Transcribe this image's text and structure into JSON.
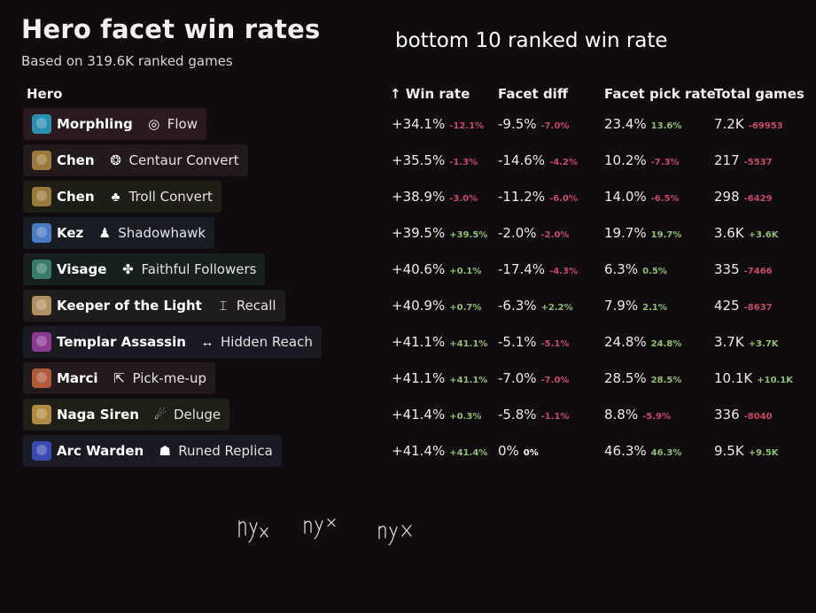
{
  "title": "Hero facet win rates",
  "subtitle": "Based on 319.6K ranked games",
  "annotation": "bottom 10 ranked win rate",
  "columns": {
    "hero": "Hero",
    "win_rate": "↑ Win rate",
    "facet_diff": "Facet diff",
    "facet_pick_rate": "Facet pick rate",
    "total_games": "Total games"
  },
  "rows": [
    {
      "hero": "Morphling",
      "facet": "Flow",
      "hero_icon": "morphling-icon",
      "facet_icon": "flow-icon",
      "hero_color": "#2a8fb0",
      "pill_bg": "#2a1a20",
      "win": "+34.1%",
      "win_d": "-12.1%",
      "win_s": "neg",
      "diff": "-9.5%",
      "diff_d": "-7.0%",
      "diff_s": "neg",
      "pick": "23.4%",
      "pick_d": "13.6%",
      "pick_s": "pos",
      "games": "7.2K",
      "games_d": "-69953",
      "games_s": "neg"
    },
    {
      "hero": "Chen",
      "facet": "Centaur Convert",
      "hero_icon": "chen-icon",
      "facet_icon": "centaur-convert-icon",
      "hero_color": "#9a7a3a",
      "pill_bg": "#221a1c",
      "win": "+35.5%",
      "win_d": "-1.3%",
      "win_s": "neg",
      "diff": "-14.6%",
      "diff_d": "-4.2%",
      "diff_s": "neg",
      "pick": "10.2%",
      "pick_d": "-7.3%",
      "pick_s": "neg",
      "games": "217",
      "games_d": "-5537",
      "games_s": "neg"
    },
    {
      "hero": "Chen",
      "facet": "Troll Convert",
      "hero_icon": "chen-icon",
      "facet_icon": "troll-convert-icon",
      "hero_color": "#9a7a3a",
      "pill_bg": "#1e1e16",
      "win": "+38.9%",
      "win_d": "-3.0%",
      "win_s": "neg",
      "diff": "-11.2%",
      "diff_d": "-6.0%",
      "diff_s": "neg",
      "pick": "14.0%",
      "pick_d": "-6.5%",
      "pick_s": "neg",
      "games": "298",
      "games_d": "-6429",
      "games_s": "neg"
    },
    {
      "hero": "Kez",
      "facet": "Shadowhawk",
      "hero_icon": "kez-icon",
      "facet_icon": "shadowhawk-icon",
      "hero_color": "#4a7ac0",
      "pill_bg": "#1a1c24",
      "win": "+39.5%",
      "win_d": "+39.5%",
      "win_s": "pos",
      "diff": "-2.0%",
      "diff_d": "-2.0%",
      "diff_s": "neg",
      "pick": "19.7%",
      "pick_d": "19.7%",
      "pick_s": "pos",
      "games": "3.6K",
      "games_d": "+3.6K",
      "games_s": "pos"
    },
    {
      "hero": "Visage",
      "facet": "Faithful Followers",
      "hero_icon": "visage-icon",
      "facet_icon": "faithful-followers-icon",
      "hero_color": "#3a7a6a",
      "pill_bg": "#17201f",
      "win": "+40.6%",
      "win_d": "+0.1%",
      "win_s": "pos",
      "diff": "-17.4%",
      "diff_d": "-4.3%",
      "diff_s": "neg",
      "pick": "6.3%",
      "pick_d": "0.5%",
      "pick_s": "pos",
      "games": "335",
      "games_d": "-7466",
      "games_s": "neg"
    },
    {
      "hero": "Keeper of the Light",
      "facet": "Recall",
      "hero_icon": "keeper-of-the-light-icon",
      "facet_icon": "recall-icon",
      "hero_color": "#b09060",
      "pill_bg": "#1f1c1c",
      "win": "+40.9%",
      "win_d": "+0.7%",
      "win_s": "pos",
      "diff": "-6.3%",
      "diff_d": "+2.2%",
      "diff_s": "pos",
      "pick": "7.9%",
      "pick_d": "2.1%",
      "pick_s": "pos",
      "games": "425",
      "games_d": "-8637",
      "games_s": "neg"
    },
    {
      "hero": "Templar Assassin",
      "facet": "Hidden Reach",
      "hero_icon": "templar-assassin-icon",
      "facet_icon": "hidden-reach-icon",
      "hero_color": "#8a3a90",
      "pill_bg": "#1a1a22",
      "win": "+41.1%",
      "win_d": "+41.1%",
      "win_s": "pos",
      "diff": "-5.1%",
      "diff_d": "-5.1%",
      "diff_s": "neg",
      "pick": "24.8%",
      "pick_d": "24.8%",
      "pick_s": "pos",
      "games": "3.7K",
      "games_d": "+3.7K",
      "games_s": "pos"
    },
    {
      "hero": "Marci",
      "facet": "Pick-me-up",
      "hero_icon": "marci-icon",
      "facet_icon": "pick-me-up-icon",
      "hero_color": "#b05a3a",
      "pill_bg": "#221a1d",
      "win": "+41.1%",
      "win_d": "+41.1%",
      "win_s": "pos",
      "diff": "-7.0%",
      "diff_d": "-7.0%",
      "diff_s": "neg",
      "pick": "28.5%",
      "pick_d": "28.5%",
      "pick_s": "pos",
      "games": "10.1K",
      "games_d": "+10.1K",
      "games_s": "pos"
    },
    {
      "hero": "Naga Siren",
      "facet": "Deluge",
      "hero_icon": "naga-siren-icon",
      "facet_icon": "deluge-icon",
      "hero_color": "#b08a40",
      "pill_bg": "#1e1f16",
      "win": "+41.4%",
      "win_d": "+0.3%",
      "win_s": "pos",
      "diff": "-5.8%",
      "diff_d": "-1.1%",
      "diff_s": "neg",
      "pick": "8.8%",
      "pick_d": "-5.9%",
      "pick_s": "neg",
      "games": "336",
      "games_d": "-8040",
      "games_s": "neg"
    },
    {
      "hero": "Arc Warden",
      "facet": "Runed Replica",
      "hero_icon": "arc-warden-icon",
      "facet_icon": "runed-replica-icon",
      "hero_color": "#3a4ab0",
      "pill_bg": "#1a1b22",
      "win": "+41.4%",
      "win_d": "+41.4%",
      "win_s": "pos",
      "diff": "0%",
      "diff_d": "0%",
      "diff_s": "neu",
      "pick": "46.3%",
      "pick_d": "46.3%",
      "pick_s": "pos",
      "games": "9.5K",
      "games_d": "+9.5K",
      "games_s": "pos"
    }
  ],
  "handwriting": "nyx nyx nyx"
}
